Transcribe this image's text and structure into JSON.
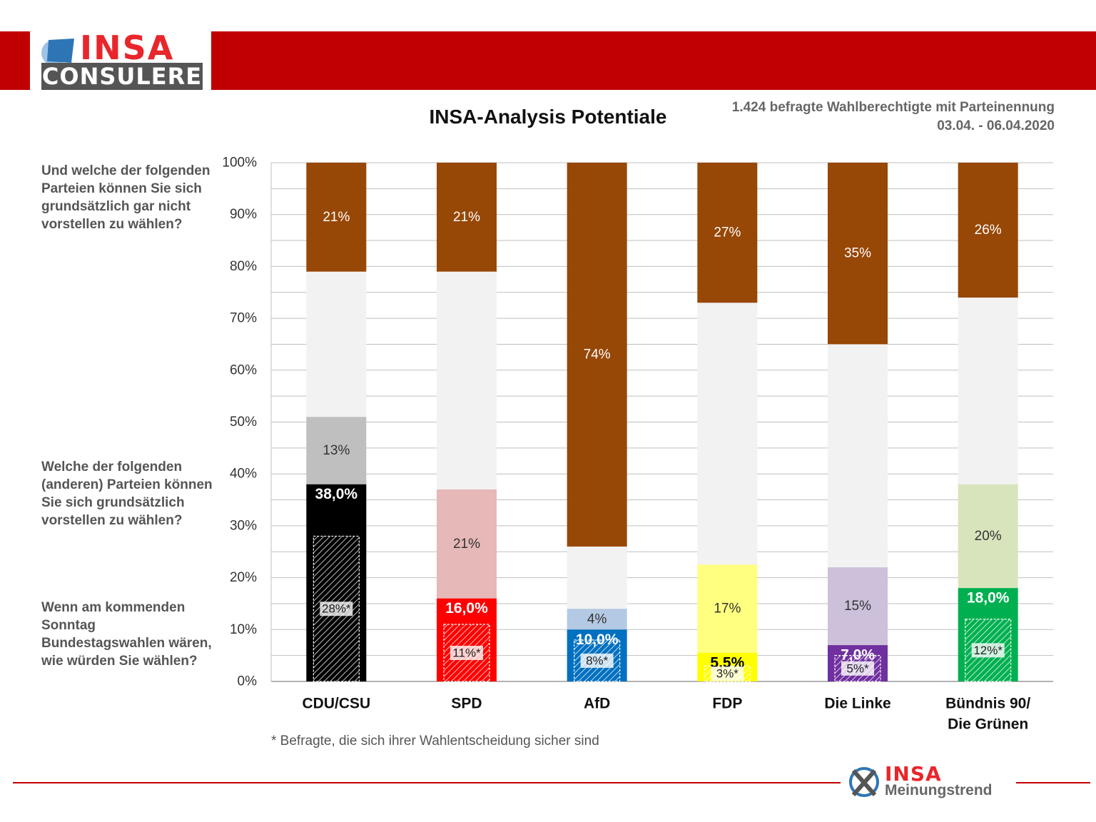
{
  "header": {
    "logo_line1": "INSA",
    "logo_line2": "CONSULERE"
  },
  "meta": {
    "sample": "1.424 befragte Wahlberechtigte mit Parteinennung",
    "period": "03.04. - 06.04.2020"
  },
  "questions": {
    "q_not": "Und welche der folgenden Parteien können Sie sich grundsätzlich gar nicht vorstellen zu wählen?",
    "q_could": "Welche der folgenden (anderen) Parteien können Sie sich grundsätzlich vorstellen zu wählen?",
    "q_vote": "Wenn am kommenden Sonntag Bundestagswahlen wären, wie würden Sie wählen?"
  },
  "footnote": "* Befragte, die sich ihrer Wahlentscheidung sicher sind",
  "footer_logo": {
    "line1": "INSA",
    "line2": "Meinungstrend"
  },
  "chart_data": {
    "type": "bar",
    "stacked": true,
    "title": "INSA-Analysis Potentiale",
    "ylim": [
      0,
      100
    ],
    "y_ticks": [
      "0%",
      "10%",
      "20%",
      "30%",
      "40%",
      "50%",
      "60%",
      "70%",
      "80%",
      "90%",
      "100%"
    ],
    "grid": true,
    "categories": [
      "CDU/CSU",
      "SPD",
      "AfD",
      "FDP",
      "Die Linke",
      "Bündnis 90/ Die Grünen"
    ],
    "category_lines": [
      [
        "CDU/CSU"
      ],
      [
        "SPD"
      ],
      [
        "AfD"
      ],
      [
        "FDP"
      ],
      [
        "Die Linke"
      ],
      [
        "Bündnis 90/",
        "Die Grünen"
      ]
    ],
    "vote": [
      38.0,
      16.0,
      10.0,
      5.5,
      7.0,
      18.0
    ],
    "vote_labels": [
      "38,0%",
      "16,0%",
      "10,0%",
      "5,5%",
      "7,0%",
      "18,0%"
    ],
    "certain": [
      28,
      11,
      8,
      3,
      5,
      12
    ],
    "certain_labels": [
      "28%*",
      "11%*",
      "8%*",
      "3%*",
      "5%*",
      "12%*"
    ],
    "potential": [
      13,
      21,
      4,
      17,
      15,
      20
    ],
    "potential_labels": [
      "13%",
      "21%",
      "4%",
      "17%",
      "15%",
      "20%"
    ],
    "rejection": [
      21,
      21,
      74,
      27,
      35,
      26
    ],
    "rejection_labels": [
      "21%",
      "21%",
      "74%",
      "27%",
      "35%",
      "26%"
    ],
    "colors": {
      "vote": [
        "#000000",
        "#ff0000",
        "#0070c0",
        "#ffff00",
        "#7030a0",
        "#00b050"
      ],
      "potential": [
        "#bfbfbf",
        "#e6b8b7",
        "#b4c9e3",
        "#ffff80",
        "#ccc0da",
        "#d8e4bc"
      ],
      "vote_label": [
        "#ffffff",
        "#ffffff",
        "#ffffff",
        "#000000",
        "#ffffff",
        "#ffffff"
      ],
      "rest": "#f2f2f2",
      "rejection": "#974706"
    }
  }
}
